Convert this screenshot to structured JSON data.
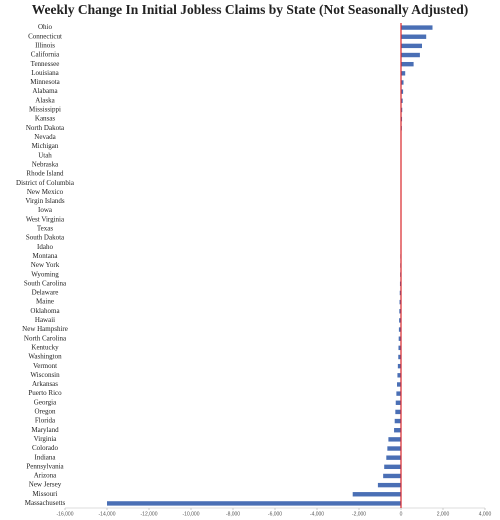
{
  "chart_data": {
    "type": "barh",
    "title": "Weekly Change In Initial Jobless Claims by State (Not Seasonally Adjusted)",
    "categories": [
      "Ohio",
      "Connecticut",
      "Illinois",
      "California",
      "Tennessee",
      "Louisiana",
      "Minnesota",
      "Alabama",
      "Alaska",
      "Mississippi",
      "Kansas",
      "North Dakota",
      "Nevada",
      "Michigan",
      "Utah",
      "Nebraska",
      "Rhode Island",
      "District of Columbia",
      "New Mexico",
      "Virgin Islands",
      "Iowa",
      "West Virginia",
      "Texas",
      "South Dakota",
      "Idaho",
      "Montana",
      "New York",
      "Wyoming",
      "South Carolina",
      "Delaware",
      "Maine",
      "Oklahoma",
      "Hawaii",
      "New Hampshire",
      "North Carolina",
      "Kentucky",
      "Washington",
      "Vermont",
      "Wisconsin",
      "Arkansas",
      "Puerto Rico",
      "Georgia",
      "Oregon",
      "Florida",
      "Maryland",
      "Virginia",
      "Colorado",
      "Indiana",
      "Pennsylvania",
      "Arizona",
      "New Jersey",
      "Missouri",
      "Massachusetts"
    ],
    "values": [
      1500,
      1200,
      1000,
      900,
      600,
      200,
      120,
      100,
      80,
      60,
      50,
      40,
      20,
      10,
      5,
      3,
      0,
      0,
      0,
      0,
      -5,
      -10,
      -15,
      -20,
      -25,
      -30,
      -35,
      -40,
      -50,
      -60,
      -70,
      -80,
      -90,
      -100,
      -110,
      -120,
      -130,
      -150,
      -170,
      -190,
      -220,
      -250,
      -270,
      -300,
      -330,
      -600,
      -650,
      -700,
      -800,
      -850,
      -1100,
      -2300,
      -14000
    ],
    "color": "#4a6fb5",
    "zero_line_color": "#d9262a",
    "xlim": [
      -16000,
      4000
    ],
    "xticks": [
      {
        "value": -16000,
        "label": "-16,000"
      },
      {
        "value": -14000,
        "label": "-14,000"
      },
      {
        "value": -12000,
        "label": "-12,000"
      },
      {
        "value": -10000,
        "label": "-10,000"
      },
      {
        "value": -8000,
        "label": "-8,000"
      },
      {
        "value": -6000,
        "label": "-6,000"
      },
      {
        "value": -4000,
        "label": "-4,000"
      },
      {
        "value": -2000,
        "label": "-2,000"
      },
      0,
      {
        "value": 2000,
        "label": "2,000"
      },
      {
        "value": 4000,
        "label": "4,000"
      }
    ],
    "grid": false
  }
}
